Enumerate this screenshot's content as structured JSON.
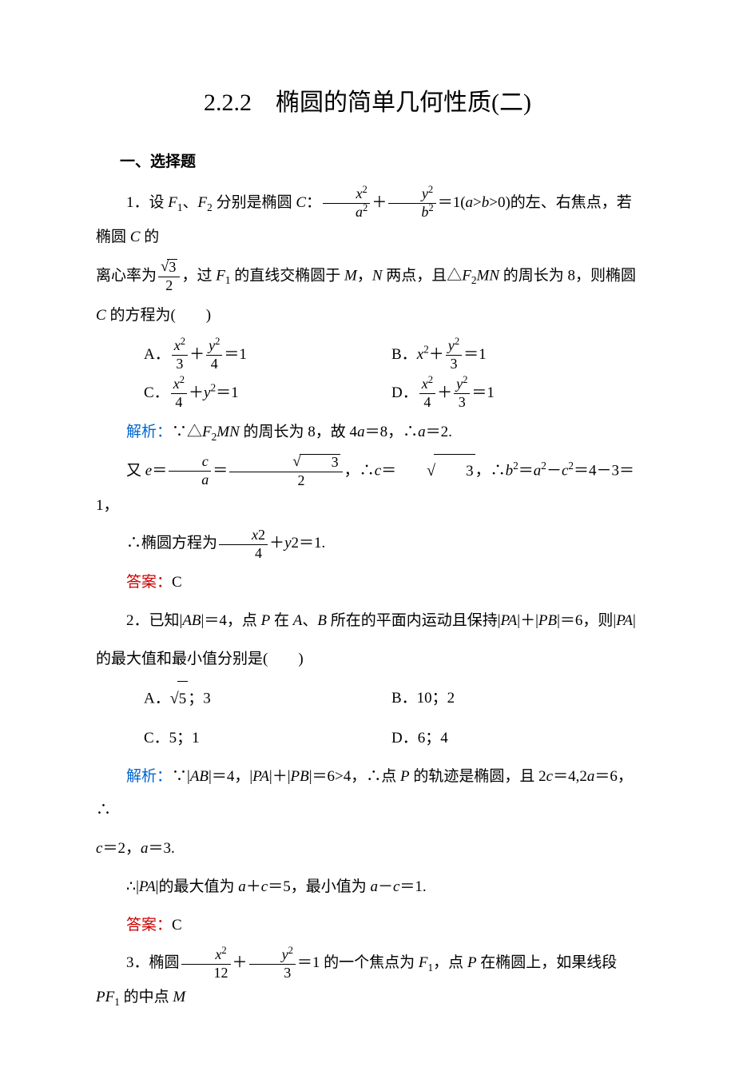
{
  "title": "2.2.2　椭圆的简单几何性质(二)",
  "headingA": "一、选择题",
  "q1": {
    "stem_a": "1．设 ",
    "stem_b": "、",
    "stem_c": " 分别是椭圆 ",
    "stem_d": "：",
    "stem_e": "＋",
    "stem_f": "＝1(",
    "stem_g": ">0)的左、右焦点，若椭圆 ",
    "stem_h": " 的",
    "line2a": "离心率为",
    "line2b": "，过 ",
    "line2c": " 的直线交椭圆于 ",
    "line2d": "，",
    "line2e": " 两点，且△",
    "line2f": " 的周长为 8，则椭圆",
    "line3a": " 的方程为(　　)",
    "optA_pre": "A．",
    "optA_mid": "＋",
    "optA_suf": "＝1",
    "optB_pre": "B．",
    "optB_mid": "＋",
    "optB_suf": "＝1",
    "optC_pre": "C．",
    "optC_mid": "＋",
    "optC_suf": "＝1",
    "optD_pre": "D．",
    "optD_mid": "＋",
    "optD_suf": "＝1",
    "sol1_label": "解析：",
    "sol1_a": "∵△",
    "sol1_b": " 的周长为 8，故 4",
    "sol1_c": "＝8，∴",
    "sol1_d": "＝2.",
    "sol2_a": "又 ",
    "sol2_b": "＝",
    "sol2_c": "＝",
    "sol2_d": "，∴",
    "sol2_e": "＝",
    "sol2_f": "，∴",
    "sol2_g": "＝",
    "sol2_h": "－",
    "sol2_i": "＝4－3＝1，",
    "sol3_a": "∴椭圆方程为",
    "sol3_b": "＋",
    "sol3_c": "2＝1.",
    "ans_label": "答案：",
    "ans": "C"
  },
  "q2": {
    "stem_a": "2．已知|",
    "stem_b": "|＝4，点 ",
    "stem_c": " 在 ",
    "stem_d": "、",
    "stem_e": " 所在的平面内运动且保持|",
    "stem_f": "|＋|",
    "stem_g": "|＝6，则|",
    "stem_h": "|",
    "line2": "的最大值和最小值分别是(　　)",
    "optA_pre": "A．",
    "optA_suf": "；3",
    "optB": "B．10；2",
    "optC": "C．5；1",
    "optD": "D．6；4",
    "sol1_label": "解析：",
    "sol1_a": "∵|",
    "sol1_b": "|＝4，|",
    "sol1_c": "|＋|",
    "sol1_d": "|＝6>4，∴点 ",
    "sol1_e": " 的轨迹是椭圆，且 2",
    "sol1_f": "＝4,2",
    "sol1_g": "＝6，∴",
    "sol2_a": "＝2，",
    "sol2_b": "＝3.",
    "sol3_a": "∴|",
    "sol3_b": "|的最大值为 ",
    "sol3_c": "＋",
    "sol3_d": "＝5，最小值为 ",
    "sol3_e": "－",
    "sol3_f": "＝1.",
    "ans_label": "答案：",
    "ans": "C"
  },
  "q3": {
    "stem_a": "3．椭圆",
    "stem_b": "＋",
    "stem_c": "＝1 的一个焦点为 ",
    "stem_d": "，点 ",
    "stem_e": " 在椭圆上，如果线段 ",
    "stem_f": " 的中点 "
  },
  "colors": {
    "text": "#000000",
    "blue": "#0066cc",
    "red": "#cc0000",
    "bg": "#ffffff"
  },
  "typography": {
    "title_fontsize": 30,
    "body_fontsize": 19,
    "font_family": "SimSun"
  }
}
